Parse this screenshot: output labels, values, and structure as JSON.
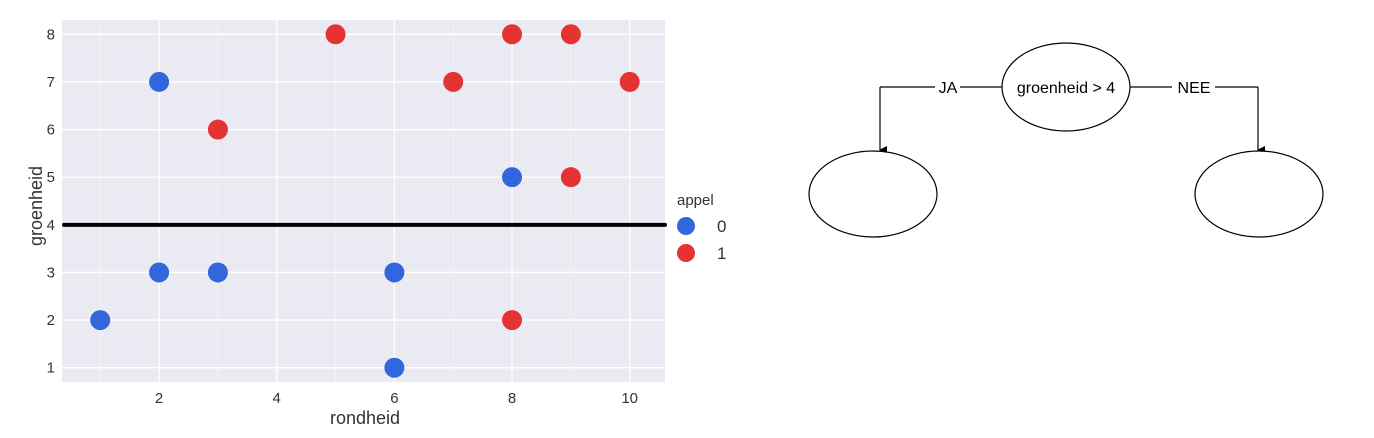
{
  "chart_data": {
    "type": "scatter",
    "title": "",
    "xlabel": "rondheid",
    "ylabel": "groenheid",
    "xlim": [
      0.35,
      10.6
    ],
    "ylim": [
      0.7,
      8.3
    ],
    "x_ticks": [
      2,
      4,
      6,
      8,
      10
    ],
    "y_ticks": [
      1,
      2,
      3,
      4,
      5,
      6,
      7,
      8
    ],
    "grid": true,
    "legend": {
      "title": "appel",
      "placement": "right",
      "entries": [
        {
          "label": "0",
          "color": "#3366dd"
        },
        {
          "label": "1",
          "color": "#e53333"
        }
      ]
    },
    "threshold_line": {
      "y": 4,
      "color": "#000000"
    },
    "series": [
      {
        "name": "0",
        "color": "#3366dd",
        "points": [
          {
            "x": 1,
            "y": 2
          },
          {
            "x": 2,
            "y": 3
          },
          {
            "x": 2,
            "y": 7
          },
          {
            "x": 3,
            "y": 3
          },
          {
            "x": 6,
            "y": 3
          },
          {
            "x": 6,
            "y": 1
          },
          {
            "x": 8,
            "y": 5
          }
        ]
      },
      {
        "name": "1",
        "color": "#e53333",
        "points": [
          {
            "x": 3,
            "y": 6
          },
          {
            "x": 5,
            "y": 8
          },
          {
            "x": 7,
            "y": 7
          },
          {
            "x": 8,
            "y": 8
          },
          {
            "x": 8,
            "y": 2
          },
          {
            "x": 9,
            "y": 8
          },
          {
            "x": 9,
            "y": 5
          },
          {
            "x": 10,
            "y": 7
          }
        ]
      }
    ]
  },
  "tree": {
    "root_label": "groenheid > 4",
    "left_edge_label": "JA",
    "right_edge_label": "NEE",
    "left_leaf_label": "",
    "right_leaf_label": ""
  }
}
